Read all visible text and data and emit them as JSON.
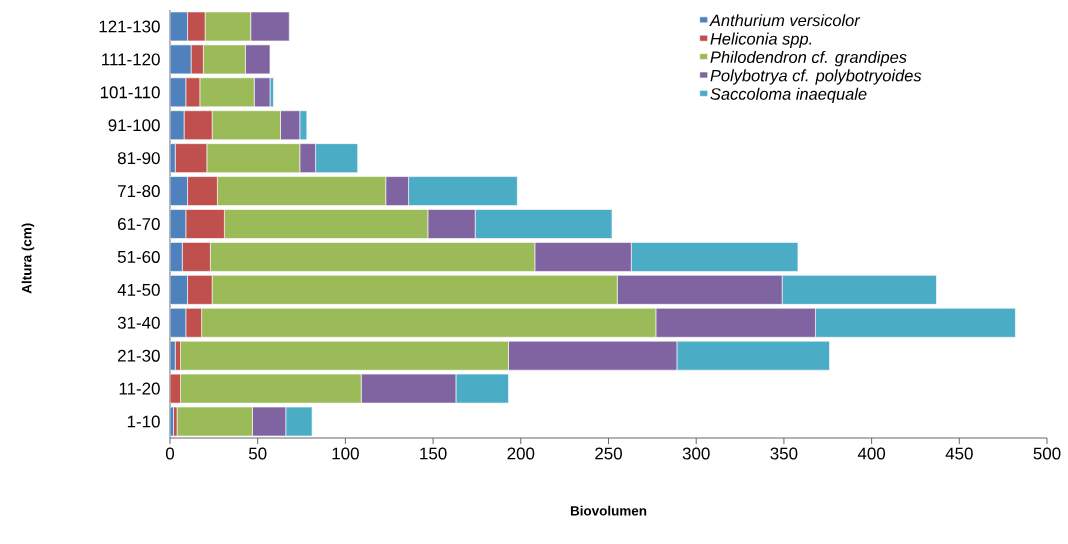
{
  "chart_data": {
    "type": "bar",
    "orientation": "horizontal",
    "stacked": true,
    "categories": [
      "121-130",
      "111-120",
      "101-110",
      "91-100",
      "81-90",
      "71-80",
      "61-70",
      "51-60",
      "41-50",
      "31-40",
      "21-30",
      "11-20",
      "1-10"
    ],
    "series": [
      {
        "name": "Anthurium versicolor",
        "color": "#4f81bd",
        "values": [
          10,
          12,
          9,
          8,
          3,
          10,
          9,
          7,
          10,
          9,
          3,
          0,
          2
        ]
      },
      {
        "name": "Heliconia spp.",
        "color": "#c0504d",
        "values": [
          10,
          7,
          8,
          16,
          18,
          17,
          22,
          16,
          14,
          9,
          3,
          6,
          2
        ]
      },
      {
        "name": "Philodendron cf. grandipes",
        "color": "#9bbb59",
        "values": [
          26,
          24,
          31,
          39,
          53,
          96,
          116,
          185,
          231,
          259,
          187,
          103,
          43
        ]
      },
      {
        "name": "Polybotrya cf. polybotryoides",
        "color": "#8064a2",
        "values": [
          22,
          14,
          9,
          11,
          9,
          13,
          27,
          55,
          94,
          91,
          96,
          54,
          19
        ]
      },
      {
        "name": "Saccoloma inaequale",
        "color": "#4bacc6",
        "values": [
          0,
          0,
          2,
          4,
          24,
          62,
          78,
          95,
          88,
          114,
          87,
          30,
          15
        ]
      }
    ],
    "xlim": [
      0,
      500
    ],
    "xticks": [
      0,
      50,
      100,
      150,
      200,
      250,
      300,
      350,
      400,
      450,
      500
    ],
    "xlabel": "Biovolumen",
    "ylabel": "Altura (cm)",
    "legend": "top right"
  }
}
